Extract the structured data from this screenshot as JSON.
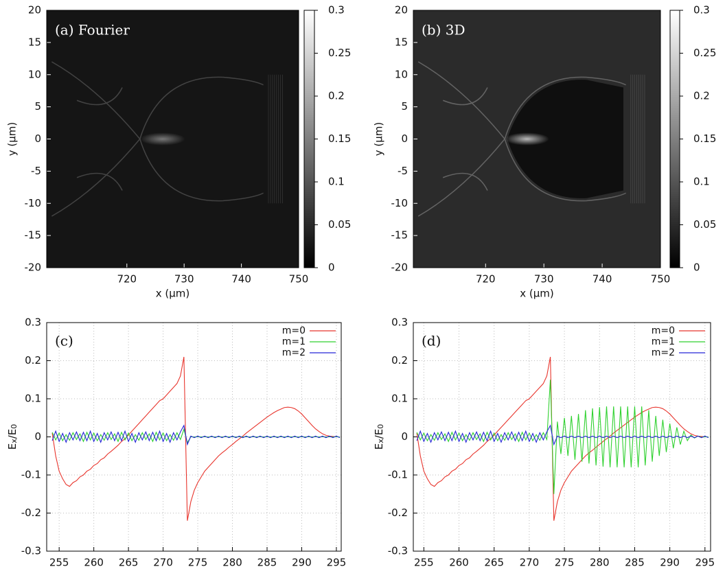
{
  "chart_data": [
    {
      "type": "heatmap",
      "annotation": "(a) Fourier",
      "xlabel": "x (μm)",
      "ylabel": "y (μm)",
      "xlim": [
        706,
        750
      ],
      "ylim": [
        -20,
        20
      ],
      "xticks": [
        720,
        730,
        740,
        750
      ],
      "yticks": [
        -20,
        -15,
        -10,
        -5,
        0,
        5,
        10,
        15,
        20
      ],
      "clim": [
        0,
        0.3
      ],
      "cticks": [
        0,
        0.05,
        0.1,
        0.15,
        0.2,
        0.25,
        0.3
      ],
      "background": "#151515"
    },
    {
      "type": "heatmap",
      "annotation": "(b) 3D",
      "xlabel": "x (μm)",
      "ylabel": "y (μm)",
      "xlim": [
        707.6,
        750
      ],
      "ylim": [
        -20,
        20
      ],
      "xticks": [
        720,
        730,
        740,
        750
      ],
      "yticks": [
        -20,
        -15,
        -10,
        -5,
        0,
        5,
        10,
        15,
        20
      ],
      "clim": [
        0,
        0.3
      ],
      "cticks": [
        0,
        0.05,
        0.1,
        0.15,
        0.2,
        0.25,
        0.3
      ],
      "background": "#2b2b2b"
    },
    {
      "type": "line",
      "annotation": "(c)",
      "xlabel": "x (μm)",
      "ylabel": [
        "E",
        "x",
        "/E",
        "0"
      ],
      "xlim": [
        253.2,
        295.7
      ],
      "ylim": [
        -0.3,
        0.3
      ],
      "xticks": [
        255,
        260,
        265,
        270,
        275,
        280,
        285,
        290,
        295
      ],
      "yticks": [
        -0.3,
        -0.2,
        -0.1,
        0,
        0.1,
        0.2,
        0.3
      ],
      "grid": true,
      "x": [
        254,
        254.5,
        255,
        255.5,
        256,
        256.5,
        257,
        257.5,
        258,
        258.5,
        259,
        259.5,
        260,
        260.5,
        261,
        261.5,
        262,
        262.5,
        263,
        263.5,
        264,
        264.5,
        265,
        265.5,
        266,
        266.5,
        267,
        267.5,
        268,
        268.5,
        269,
        269.5,
        270,
        270.5,
        271,
        271.5,
        272,
        272.5,
        273,
        273.5,
        274,
        274.5,
        275,
        275.5,
        276,
        276.5,
        277,
        277.5,
        278,
        278.5,
        279,
        279.5,
        280,
        280.5,
        281,
        281.5,
        282,
        282.5,
        283,
        283.5,
        284,
        284.5,
        285,
        285.5,
        286,
        286.5,
        287,
        287.5,
        288,
        288.5,
        289,
        289.5,
        290,
        290.5,
        291,
        291.5,
        292,
        292.5,
        293,
        293.5,
        294,
        294.5,
        295,
        295.5
      ],
      "series": [
        {
          "name": "m=0",
          "color": "#e8342c",
          "values": [
            0.01,
            -0.05,
            -0.09,
            -0.11,
            -0.125,
            -0.13,
            -0.12,
            -0.115,
            -0.105,
            -0.1,
            -0.09,
            -0.085,
            -0.075,
            -0.07,
            -0.06,
            -0.055,
            -0.045,
            -0.038,
            -0.03,
            -0.022,
            -0.012,
            -0.005,
            0.005,
            0.015,
            0.025,
            0.035,
            0.045,
            0.055,
            0.065,
            0.075,
            0.085,
            0.095,
            0.1,
            0.11,
            0.12,
            0.13,
            0.14,
            0.16,
            0.21,
            -0.22,
            -0.17,
            -0.14,
            -0.12,
            -0.105,
            -0.09,
            -0.08,
            -0.07,
            -0.06,
            -0.05,
            -0.042,
            -0.035,
            -0.027,
            -0.02,
            -0.012,
            -0.005,
            0.002,
            0.01,
            0.017,
            0.024,
            0.031,
            0.038,
            0.045,
            0.052,
            0.058,
            0.064,
            0.069,
            0.073,
            0.077,
            0.078,
            0.077,
            0.074,
            0.068,
            0.06,
            0.05,
            0.04,
            0.03,
            0.021,
            0.014,
            0.008,
            0.004,
            0.002,
            0.001,
            0,
            0
          ]
        },
        {
          "name": "m=1",
          "color": "#2fd12f",
          "values": [
            0.012,
            -0.008,
            0.01,
            -0.01,
            0.006,
            -0.009,
            0.011,
            -0.007,
            0.008,
            -0.012,
            0.012,
            -0.008,
            0.01,
            -0.01,
            0.006,
            -0.009,
            0.011,
            -0.007,
            0.008,
            -0.012,
            0.012,
            -0.008,
            0.01,
            -0.01,
            0.006,
            -0.009,
            0.011,
            -0.007,
            0.008,
            -0.012,
            0.012,
            -0.008,
            0.01,
            -0.01,
            0.006,
            -0.009,
            0.011,
            -0.007,
            0.02,
            -0.015,
            0,
            0,
            0,
            0,
            0,
            0,
            0,
            0,
            0,
            0,
            0,
            0,
            0,
            0,
            0,
            0,
            0,
            0,
            0,
            0,
            0,
            0,
            0,
            0,
            0,
            0,
            0,
            0,
            0,
            0,
            0,
            0,
            0,
            0,
            0,
            0,
            0,
            0,
            0,
            0,
            0,
            0,
            0,
            0
          ]
        },
        {
          "name": "m=2",
          "color": "#2424d6",
          "values": [
            -0.01,
            0.015,
            -0.012,
            0.009,
            -0.014,
            0.011,
            -0.008,
            0.013,
            -0.01,
            0.012,
            -0.01,
            0.015,
            -0.012,
            0.009,
            -0.014,
            0.011,
            -0.008,
            0.013,
            -0.01,
            0.012,
            -0.01,
            0.015,
            -0.012,
            0.009,
            -0.014,
            0.011,
            -0.008,
            0.013,
            -0.01,
            0.012,
            -0.01,
            0.015,
            -0.012,
            0.009,
            -0.014,
            0.011,
            -0.008,
            0.013,
            0.03,
            -0.02,
            0.002,
            -0.002,
            0.002,
            -0.002,
            0.002,
            -0.002,
            0.002,
            -0.002,
            0.002,
            -0.002,
            0.002,
            -0.002,
            0.002,
            -0.002,
            0.002,
            -0.002,
            0.002,
            -0.002,
            0.002,
            -0.002,
            0.002,
            -0.002,
            0.002,
            -0.002,
            0.002,
            -0.002,
            0.002,
            -0.002,
            0.002,
            -0.002,
            0.002,
            -0.002,
            0.002,
            -0.002,
            0.002,
            -0.002,
            0.002,
            -0.002,
            0.002,
            -0.002,
            0.002,
            -0.002,
            0.002,
            -0.002
          ]
        }
      ]
    },
    {
      "type": "line",
      "annotation": "(d)",
      "xlabel": "x (μm)",
      "ylabel": [
        "E",
        "x",
        "/E",
        "0"
      ],
      "xlim": [
        253.5,
        295.8
      ],
      "ylim": [
        -0.3,
        0.3
      ],
      "xticks": [
        255,
        260,
        265,
        270,
        275,
        280,
        285,
        290,
        295
      ],
      "yticks": [
        -0.3,
        -0.2,
        -0.1,
        0,
        0.1,
        0.2,
        0.3
      ],
      "grid": true,
      "x": [
        254,
        254.5,
        255,
        255.5,
        256,
        256.5,
        257,
        257.5,
        258,
        258.5,
        259,
        259.5,
        260,
        260.5,
        261,
        261.5,
        262,
        262.5,
        263,
        263.5,
        264,
        264.5,
        265,
        265.5,
        266,
        266.5,
        267,
        267.5,
        268,
        268.5,
        269,
        269.5,
        270,
        270.5,
        271,
        271.5,
        272,
        272.5,
        273,
        273.5,
        274,
        274.5,
        275,
        275.5,
        276,
        276.5,
        277,
        277.5,
        278,
        278.5,
        279,
        279.5,
        280,
        280.5,
        281,
        281.5,
        282,
        282.5,
        283,
        283.5,
        284,
        284.5,
        285,
        285.5,
        286,
        286.5,
        287,
        287.5,
        288,
        288.5,
        289,
        289.5,
        290,
        290.5,
        291,
        291.5,
        292,
        292.5,
        293,
        293.5,
        294,
        294.5,
        295,
        295.5
      ],
      "series": [
        {
          "name": "m=0",
          "color": "#e8342c",
          "values": [
            0.01,
            -0.05,
            -0.09,
            -0.11,
            -0.125,
            -0.13,
            -0.12,
            -0.115,
            -0.105,
            -0.1,
            -0.09,
            -0.085,
            -0.075,
            -0.07,
            -0.06,
            -0.055,
            -0.045,
            -0.038,
            -0.03,
            -0.022,
            -0.012,
            -0.005,
            0.005,
            0.015,
            0.025,
            0.035,
            0.045,
            0.055,
            0.065,
            0.075,
            0.085,
            0.095,
            0.1,
            0.11,
            0.12,
            0.13,
            0.14,
            0.16,
            0.21,
            -0.22,
            -0.17,
            -0.14,
            -0.12,
            -0.105,
            -0.09,
            -0.08,
            -0.07,
            -0.06,
            -0.05,
            -0.042,
            -0.035,
            -0.027,
            -0.02,
            -0.012,
            -0.005,
            0.002,
            0.01,
            0.017,
            0.024,
            0.031,
            0.038,
            0.045,
            0.052,
            0.058,
            0.064,
            0.069,
            0.073,
            0.077,
            0.078,
            0.077,
            0.074,
            0.068,
            0.06,
            0.05,
            0.04,
            0.03,
            0.021,
            0.014,
            0.008,
            0.004,
            0.002,
            0.001,
            0,
            0
          ]
        },
        {
          "name": "m=1",
          "color": "#2fd12f",
          "values": [
            0.012,
            -0.008,
            0.01,
            -0.01,
            0.006,
            -0.009,
            0.011,
            -0.007,
            0.008,
            -0.012,
            0.012,
            -0.008,
            0.01,
            -0.01,
            0.006,
            -0.009,
            0.011,
            -0.007,
            0.008,
            -0.012,
            0.012,
            -0.008,
            0.01,
            -0.01,
            0.006,
            -0.009,
            0.011,
            -0.007,
            0.008,
            -0.012,
            0.012,
            -0.008,
            0.01,
            -0.01,
            0.006,
            -0.009,
            0.011,
            -0.007,
            0.15,
            -0.15,
            0.04,
            -0.045,
            0.05,
            -0.05,
            0.055,
            -0.06,
            0.06,
            -0.065,
            0.07,
            -0.07,
            0.075,
            -0.075,
            0.078,
            -0.078,
            0.08,
            -0.08,
            0.08,
            -0.08,
            0.08,
            -0.08,
            0.08,
            -0.08,
            0.08,
            -0.08,
            0.08,
            -0.075,
            0.07,
            -0.065,
            0.055,
            -0.05,
            0.045,
            -0.04,
            0.035,
            -0.03,
            0.025,
            -0.02,
            0.015,
            -0.01,
            0.005,
            -0.003,
            0.002,
            -0.001,
            0,
            0
          ]
        },
        {
          "name": "m=2",
          "color": "#2424d6",
          "values": [
            -0.01,
            0.015,
            -0.012,
            0.009,
            -0.014,
            0.011,
            -0.008,
            0.013,
            -0.01,
            0.012,
            -0.01,
            0.015,
            -0.012,
            0.009,
            -0.014,
            0.011,
            -0.008,
            0.013,
            -0.01,
            0.012,
            -0.01,
            0.015,
            -0.012,
            0.009,
            -0.014,
            0.011,
            -0.008,
            0.013,
            -0.01,
            0.012,
            -0.01,
            0.015,
            -0.012,
            0.009,
            -0.014,
            0.011,
            -0.008,
            0.013,
            0.03,
            -0.02,
            0.002,
            -0.002,
            0.002,
            -0.002,
            0.002,
            -0.002,
            0.002,
            -0.002,
            0.002,
            -0.002,
            0.002,
            -0.002,
            0.002,
            -0.002,
            0.002,
            -0.002,
            0.002,
            -0.002,
            0.002,
            -0.002,
            0.002,
            -0.002,
            0.002,
            -0.002,
            0.002,
            -0.002,
            0.002,
            -0.002,
            0.002,
            -0.002,
            0.002,
            -0.002,
            0.002,
            -0.002,
            0.002,
            -0.002,
            0.002,
            -0.002,
            0.002,
            -0.002,
            0.002,
            -0.002,
            0.002,
            -0.002
          ]
        }
      ]
    }
  ]
}
